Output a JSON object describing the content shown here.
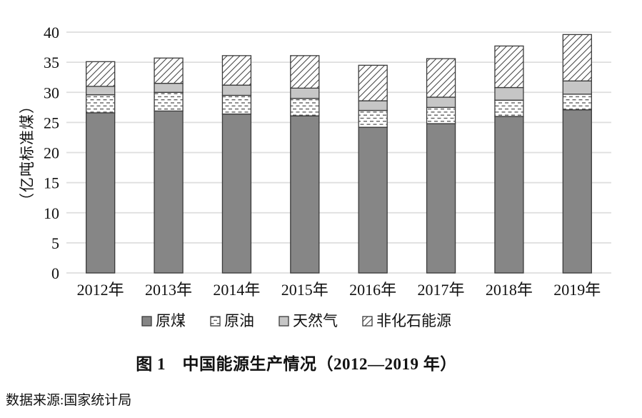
{
  "chart_data": {
    "type": "bar",
    "stacked": true,
    "title": "图 1　中国能源生产情况（2012—2019 年）",
    "source": "数据来源:国家统计局",
    "xlabel": "",
    "ylabel": "（亿吨标准煤）",
    "ylim": [
      0,
      40
    ],
    "yticks": [
      0,
      5,
      10,
      15,
      20,
      25,
      30,
      35,
      40
    ],
    "grid": true,
    "legend_position": "bottom",
    "categories": [
      "2012年",
      "2013年",
      "2014年",
      "2015年",
      "2016年",
      "2017年",
      "2018年",
      "2019年"
    ],
    "series": [
      {
        "name": "原煤",
        "fill": "#868686",
        "values": [
          26.6,
          26.9,
          26.4,
          26.1,
          24.2,
          24.8,
          26.0,
          27.1
        ]
      },
      {
        "name": "原油",
        "fill": "dash-pattern",
        "values": [
          3.0,
          3.1,
          3.1,
          2.9,
          2.8,
          2.7,
          2.7,
          2.6
        ]
      },
      {
        "name": "天然气",
        "fill": "#c6c6c6",
        "values": [
          1.4,
          1.5,
          1.7,
          1.7,
          1.6,
          1.7,
          2.1,
          2.2
        ]
      },
      {
        "name": "非化石能源",
        "fill": "hatch-pattern",
        "values": [
          4.1,
          4.2,
          4.9,
          5.4,
          5.9,
          6.4,
          6.9,
          7.7
        ]
      }
    ],
    "totals": [
      35.1,
      35.7,
      36.1,
      36.1,
      34.5,
      35.6,
      37.7,
      39.6
    ]
  },
  "colors": {
    "coal_fill": "#868686",
    "gas_fill": "#c6c6c6",
    "bar_outline": "#3a3a3a",
    "gridline": "#dedede",
    "text": "#111111",
    "pattern_line": "#555555"
  }
}
